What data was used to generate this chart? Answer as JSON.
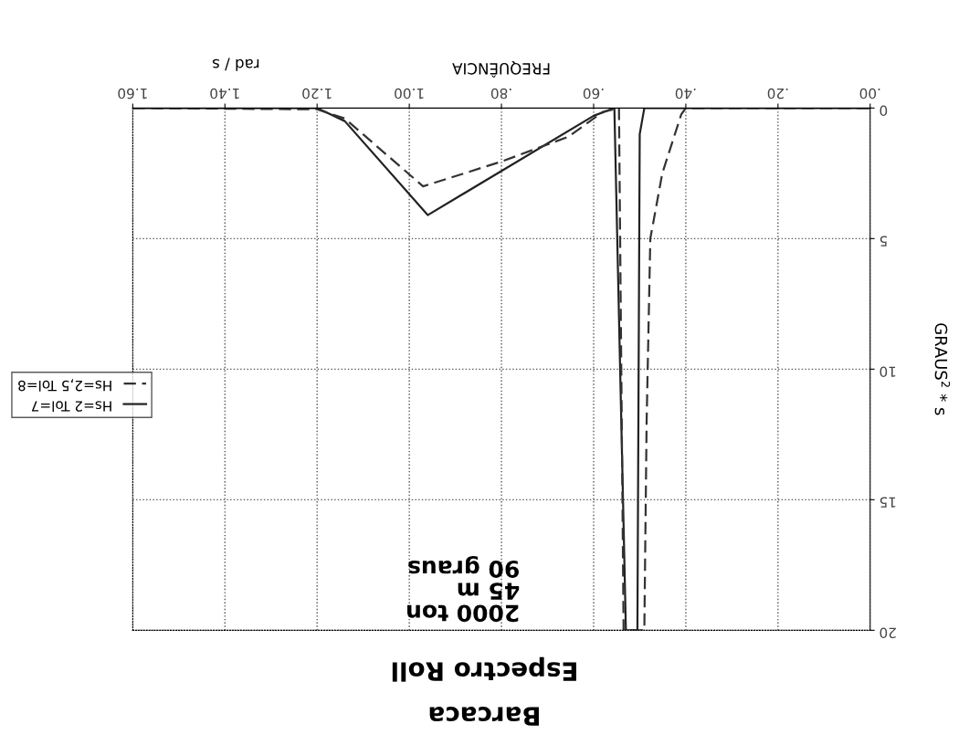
{
  "chart_data": {
    "type": "line",
    "title": "Barcaca",
    "subtitle": "Espectro Roll",
    "xlabel": "FREQUÊNCIA",
    "ylabel": "GRAUS$^{2}$ * s",
    "annotations": [
      "2000 ton\n45 m\n90 graus",
      "rad / s"
    ],
    "series": [
      {
        "name": "Hs=2 Tol=7",
        "color": "#222222",
        "line_style": "solid",
        "x": [
          1.6,
          1.2,
          1.14,
          0.96,
          0.78,
          0.6,
          0.555,
          0.53,
          0.505,
          0.5,
          0.49,
          0.0
        ],
        "values": [
          0,
          0,
          0.5,
          4.1,
          2.2,
          0.3,
          0,
          20,
          20,
          1,
          0,
          0
        ]
      },
      {
        "name": "Hs=2,5 Tol=8",
        "color": "#333333",
        "line_style": "dashed",
        "x": [
          1.6,
          1.2,
          1.14,
          0.97,
          0.8,
          0.655,
          0.58,
          0.545,
          0.535,
          0.49,
          0.485,
          0.477,
          0.451,
          0.41,
          0.4,
          0.0
        ],
        "values": [
          0,
          0.05,
          0.4,
          3.0,
          2.05,
          1.1,
          0.15,
          0,
          20,
          20,
          12,
          5,
          2.5,
          0.25,
          0,
          0
        ]
      }
    ],
    "xlim": [
      1.6,
      0
    ],
    "xticks": [
      {
        "value": 1.6,
        "label": "1.60"
      },
      {
        "value": 1.4,
        "label": "1.40"
      },
      {
        "value": 1.2,
        "label": "1.20"
      },
      {
        "value": 1.0,
        "label": "1.00"
      },
      {
        "value": 0.8,
        "label": ".80"
      },
      {
        "value": 0.6,
        "label": ".60"
      },
      {
        "value": 0.4,
        "label": ".40"
      },
      {
        "value": 0.2,
        "label": ".20"
      },
      {
        "value": 0,
        "label": ".00"
      }
    ],
    "ylim": [
      20,
      0
    ],
    "yticks": [
      0,
      5,
      10,
      15,
      20
    ],
    "grid": true,
    "legend": "left"
  }
}
